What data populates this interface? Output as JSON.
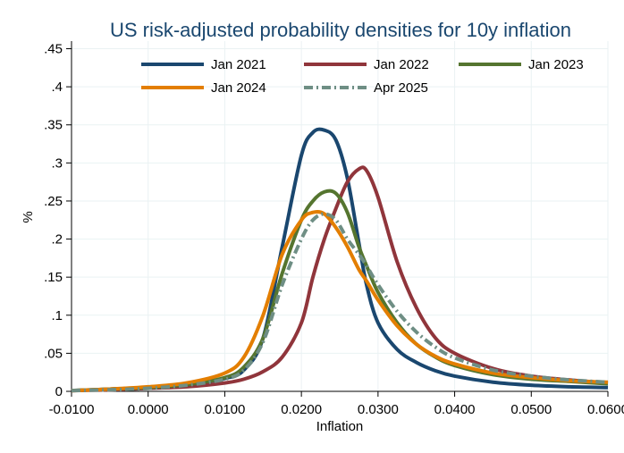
{
  "chart_data": {
    "type": "line",
    "title": "US risk-adjusted probability densities for 10y inflation",
    "xlabel": "Inflation",
    "ylabel": "%",
    "xlim": [
      -0.01,
      0.06
    ],
    "ylim": [
      0,
      0.46
    ],
    "x_ticks": [
      -0.01,
      0.0,
      0.01,
      0.02,
      0.03,
      0.04,
      0.05,
      0.06
    ],
    "x_tick_labels": [
      "-0.0100",
      "0.0000",
      "0.0100",
      "0.0200",
      "0.0300",
      "0.0400",
      "0.0500",
      "0.0600"
    ],
    "y_ticks": [
      0,
      0.05,
      0.1,
      0.15,
      0.2,
      0.25,
      0.3,
      0.35,
      0.4,
      0.45
    ],
    "y_tick_labels": [
      "0",
      ".05",
      ".1",
      ".15",
      ".2",
      ".25",
      ".3",
      ".35",
      ".4",
      ".45"
    ],
    "grid": true,
    "legend_position": "top",
    "x": [
      -0.01,
      -0.005,
      0.0,
      0.005,
      0.01,
      0.0125,
      0.015,
      0.0175,
      0.02,
      0.0215,
      0.023,
      0.0245,
      0.026,
      0.0275,
      0.0285,
      0.03,
      0.0325,
      0.035,
      0.0375,
      0.04,
      0.045,
      0.05,
      0.055,
      0.06
    ],
    "series": [
      {
        "name": "Jan 2021",
        "color": "#1a476f",
        "dash": "solid",
        "values": [
          0.001,
          0.003,
          0.005,
          0.009,
          0.017,
          0.028,
          0.07,
          0.19,
          0.31,
          0.34,
          0.343,
          0.33,
          0.28,
          0.195,
          0.14,
          0.09,
          0.055,
          0.038,
          0.027,
          0.02,
          0.012,
          0.008,
          0.006,
          0.005
        ]
      },
      {
        "name": "Jan 2022",
        "color": "#90353b",
        "dash": "solid",
        "values": [
          0.001,
          0.002,
          0.004,
          0.006,
          0.011,
          0.016,
          0.026,
          0.045,
          0.09,
          0.15,
          0.2,
          0.24,
          0.275,
          0.292,
          0.29,
          0.255,
          0.17,
          0.11,
          0.07,
          0.05,
          0.03,
          0.02,
          0.015,
          0.011
        ]
      },
      {
        "name": "Jan 2023",
        "color": "#55752f",
        "dash": "solid",
        "values": [
          0.001,
          0.003,
          0.005,
          0.009,
          0.018,
          0.032,
          0.07,
          0.155,
          0.225,
          0.25,
          0.262,
          0.26,
          0.235,
          0.19,
          0.165,
          0.13,
          0.09,
          0.062,
          0.045,
          0.034,
          0.022,
          0.016,
          0.013,
          0.01
        ]
      },
      {
        "name": "Jan 2024",
        "color": "#e37e00",
        "dash": "solid",
        "values": [
          0.001,
          0.003,
          0.006,
          0.011,
          0.024,
          0.045,
          0.1,
          0.18,
          0.225,
          0.235,
          0.233,
          0.215,
          0.19,
          0.16,
          0.145,
          0.12,
          0.086,
          0.062,
          0.046,
          0.036,
          0.024,
          0.018,
          0.014,
          0.012
        ]
      },
      {
        "name": "Apr 2025",
        "color": "#6e8e84",
        "dash": "dashdot",
        "values": [
          0.001,
          0.002,
          0.004,
          0.008,
          0.016,
          0.028,
          0.065,
          0.14,
          0.2,
          0.225,
          0.233,
          0.225,
          0.2,
          0.18,
          0.165,
          0.14,
          0.105,
          0.078,
          0.058,
          0.044,
          0.028,
          0.02,
          0.015,
          0.012
        ]
      }
    ]
  }
}
